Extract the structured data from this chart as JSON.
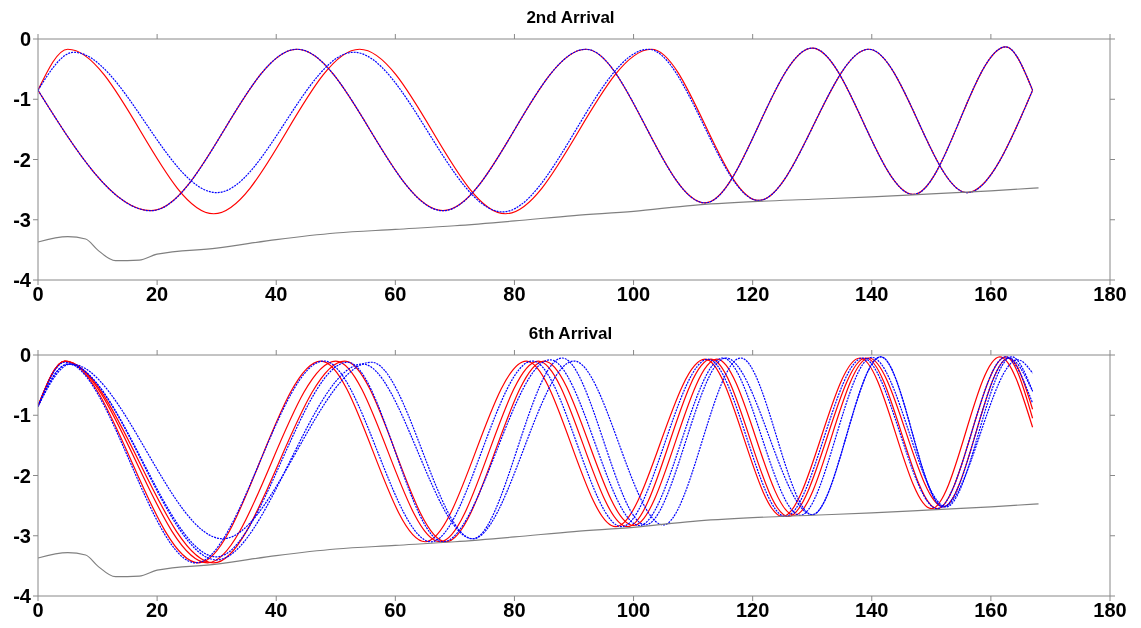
{
  "chart_data": [
    {
      "type": "line",
      "title": "2nd Arrival",
      "xlim": [
        0,
        180
      ],
      "xticks": [
        0,
        20,
        40,
        60,
        80,
        100,
        120,
        140,
        160,
        180
      ],
      "ylim": [
        -4,
        0
      ],
      "yticks": [
        -4,
        -3,
        -2,
        -1,
        0
      ],
      "series": [
        {
          "color": "#ff0000",
          "line_style": "solid",
          "x": [
            0,
            19,
            43.5,
            68,
            92,
            112,
            130,
            147,
            162.5,
            167
          ],
          "values": [
            -0.85,
            -2.85,
            -0.17,
            -2.85,
            -0.17,
            -2.72,
            -0.15,
            -2.58,
            -0.13,
            -0.85
          ]
        },
        {
          "color": "#ff0000",
          "line_style": "solid",
          "x": [
            0,
            5,
            29.5,
            54,
            78.5,
            103,
            121,
            139.5,
            156,
            167
          ],
          "values": [
            -0.85,
            -0.17,
            -2.9,
            -0.17,
            -2.9,
            -0.17,
            -2.68,
            -0.17,
            -2.55,
            -0.85
          ]
        },
        {
          "color": "#0000ff",
          "line_style": "dashed",
          "x": [
            0,
            19,
            43.5,
            68,
            92,
            112,
            130,
            147,
            162.5,
            167
          ],
          "values": [
            -0.85,
            -2.85,
            -0.17,
            -2.85,
            -0.17,
            -2.72,
            -0.15,
            -2.58,
            -0.13,
            -0.85
          ]
        },
        {
          "color": "#0000ff",
          "line_style": "dashed",
          "x": [
            0,
            6,
            30,
            53,
            78,
            102.5,
            121,
            139.5,
            156,
            167
          ],
          "values": [
            -0.85,
            -0.22,
            -2.55,
            -0.22,
            -2.87,
            -0.17,
            -2.68,
            -0.17,
            -2.55,
            -0.85
          ]
        },
        {
          "color": "#808080",
          "line_style": "solid",
          "x": [
            0,
            5,
            8,
            10,
            13,
            17,
            20,
            30,
            40,
            50,
            60,
            70,
            80,
            90,
            100,
            110,
            120,
            130,
            140,
            150,
            160,
            168
          ],
          "values": [
            -3.37,
            -3.28,
            -3.32,
            -3.5,
            -3.68,
            -3.67,
            -3.57,
            -3.47,
            -3.33,
            -3.22,
            -3.16,
            -3.1,
            -3.02,
            -2.93,
            -2.86,
            -2.76,
            -2.7,
            -2.66,
            -2.62,
            -2.57,
            -2.52,
            -2.47
          ]
        }
      ]
    },
    {
      "type": "line",
      "title": "6th Arrival",
      "xlim": [
        0,
        180
      ],
      "xticks": [
        0,
        20,
        40,
        60,
        80,
        100,
        120,
        140,
        160,
        180
      ],
      "ylim": [
        -4,
        0
      ],
      "yticks": [
        -4,
        -3,
        -2,
        -1,
        0
      ],
      "series": [
        {
          "color": "#ff0000",
          "line_style": "solid",
          "x": [
            0,
            4.5,
            27,
            47.5,
            65,
            82,
            97,
            112,
            125,
            138,
            150,
            161.5,
            167
          ],
          "values": [
            -0.85,
            -0.1,
            -3.45,
            -0.1,
            -3.1,
            -0.1,
            -2.85,
            -0.07,
            -2.68,
            -0.05,
            -2.55,
            -0.03,
            -1.2
          ]
        },
        {
          "color": "#ff0000",
          "line_style": "solid",
          "x": [
            0,
            4.5,
            28.5,
            50,
            67.5,
            84,
            99,
            113,
            126,
            139,
            151,
            162.5,
            167
          ],
          "values": [
            -0.85,
            -0.1,
            -3.45,
            -0.1,
            -3.1,
            -0.1,
            -2.85,
            -0.07,
            -2.68,
            -0.05,
            -2.55,
            -0.03,
            -1.05
          ]
        },
        {
          "color": "#ff0000",
          "line_style": "solid",
          "x": [
            0,
            4.5,
            29.5,
            51.5,
            68.5,
            85,
            100,
            114,
            127,
            139.5,
            152,
            163,
            167
          ],
          "values": [
            -0.85,
            -0.1,
            -3.45,
            -0.1,
            -3.1,
            -0.1,
            -2.83,
            -0.07,
            -2.66,
            -0.05,
            -2.52,
            -0.05,
            -0.9
          ]
        },
        {
          "color": "#0000ff",
          "line_style": "dashed",
          "x": [
            0,
            4.5,
            26.5,
            48,
            66,
            83,
            98,
            112.5,
            125.5,
            138.5,
            151,
            162.5,
            167
          ],
          "values": [
            -0.85,
            -0.12,
            -3.45,
            -0.1,
            -3.1,
            -0.1,
            -2.85,
            -0.07,
            -2.68,
            -0.05,
            -2.55,
            -0.03,
            -0.8
          ]
        },
        {
          "color": "#0000ff",
          "line_style": "dashed",
          "x": [
            0,
            5,
            30,
            52,
            68,
            86,
            101,
            115,
            128,
            140,
            152.5,
            163.5,
            167
          ],
          "values": [
            -0.85,
            -0.15,
            -3.35,
            -0.12,
            -3.1,
            -0.08,
            -2.83,
            -0.05,
            -2.66,
            -0.04,
            -2.52,
            -0.03,
            -0.6
          ]
        },
        {
          "color": "#0000ff",
          "line_style": "dashed",
          "x": [
            0,
            5,
            30,
            54.5,
            73,
            88,
            102,
            115.5,
            130,
            141.5,
            152,
            163,
            167
          ],
          "values": [
            -0.85,
            -0.15,
            -3.4,
            -0.15,
            -3.05,
            -0.05,
            -2.82,
            -0.05,
            -2.65,
            -0.03,
            -2.52,
            -0.05,
            -0.6
          ]
        },
        {
          "color": "#0000ff",
          "line_style": "dashed",
          "x": [
            0,
            5.5,
            31,
            56,
            73,
            90,
            105,
            118,
            130,
            141.5,
            152,
            164.5,
            167
          ],
          "values": [
            -0.85,
            -0.15,
            -3.05,
            -0.12,
            -3.05,
            -0.1,
            -2.82,
            -0.05,
            -2.65,
            -0.03,
            -2.52,
            -0.08,
            -0.3
          ]
        },
        {
          "color": "#808080",
          "line_style": "solid",
          "x": [
            0,
            5,
            8,
            10,
            13,
            17,
            20,
            30,
            40,
            50,
            60,
            70,
            80,
            90,
            100,
            110,
            120,
            130,
            140,
            150,
            160,
            168
          ],
          "values": [
            -3.37,
            -3.28,
            -3.32,
            -3.5,
            -3.68,
            -3.67,
            -3.57,
            -3.47,
            -3.33,
            -3.22,
            -3.16,
            -3.1,
            -3.02,
            -2.93,
            -2.86,
            -2.76,
            -2.7,
            -2.66,
            -2.62,
            -2.57,
            -2.52,
            -2.47
          ]
        }
      ]
    }
  ]
}
